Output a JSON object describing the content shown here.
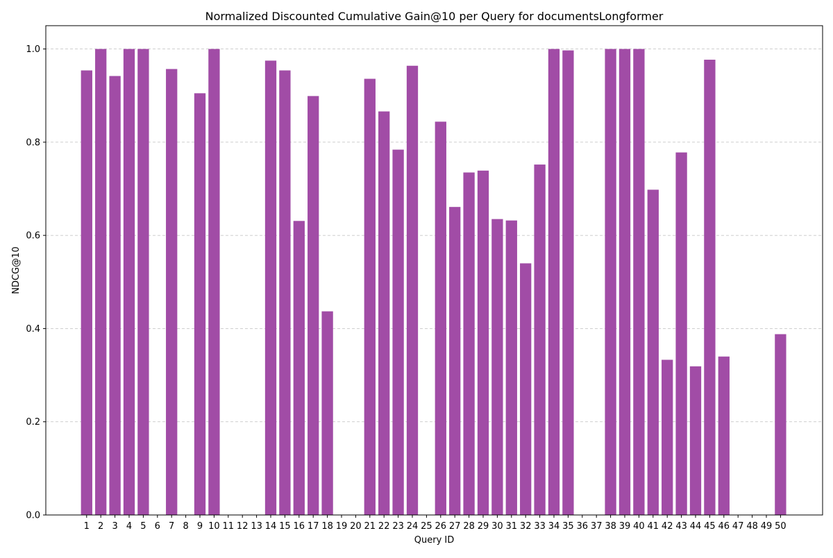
{
  "chart_data": {
    "type": "bar",
    "title": "Normalized Discounted Cumulative Gain@10 per Query for documentsLongformer",
    "xlabel": "Query ID",
    "ylabel": "NDCG@10",
    "ylim": [
      0,
      1.05
    ],
    "yticks": [
      "0.0",
      "0.2",
      "0.4",
      "0.6",
      "0.8",
      "1.0"
    ],
    "grid": "y-dashed",
    "bar_color": "#a14ca6",
    "categories": [
      "1",
      "2",
      "3",
      "4",
      "5",
      "6",
      "7",
      "8",
      "9",
      "10",
      "11",
      "12",
      "13",
      "14",
      "15",
      "16",
      "17",
      "18",
      "19",
      "20",
      "21",
      "22",
      "23",
      "24",
      "25",
      "26",
      "27",
      "28",
      "29",
      "30",
      "31",
      "32",
      "33",
      "34",
      "35",
      "36",
      "37",
      "38",
      "39",
      "40",
      "41",
      "42",
      "43",
      "44",
      "45",
      "46",
      "47",
      "48",
      "49",
      "50"
    ],
    "values": [
      0.954,
      1.0,
      0.942,
      1.0,
      1.0,
      0.0,
      0.957,
      0.0,
      0.905,
      1.0,
      0.0,
      0.0,
      0.0,
      0.975,
      0.954,
      0.631,
      0.899,
      0.437,
      0.0,
      0.0,
      0.936,
      0.866,
      0.784,
      0.964,
      0.0,
      0.844,
      0.661,
      0.735,
      0.739,
      0.635,
      0.632,
      0.54,
      0.752,
      1.0,
      0.997,
      0.0,
      0.0,
      1.0,
      1.0,
      1.0,
      0.698,
      0.333,
      0.778,
      0.319,
      0.977,
      0.34,
      0.0,
      0.0,
      0.0,
      0.388
    ]
  }
}
